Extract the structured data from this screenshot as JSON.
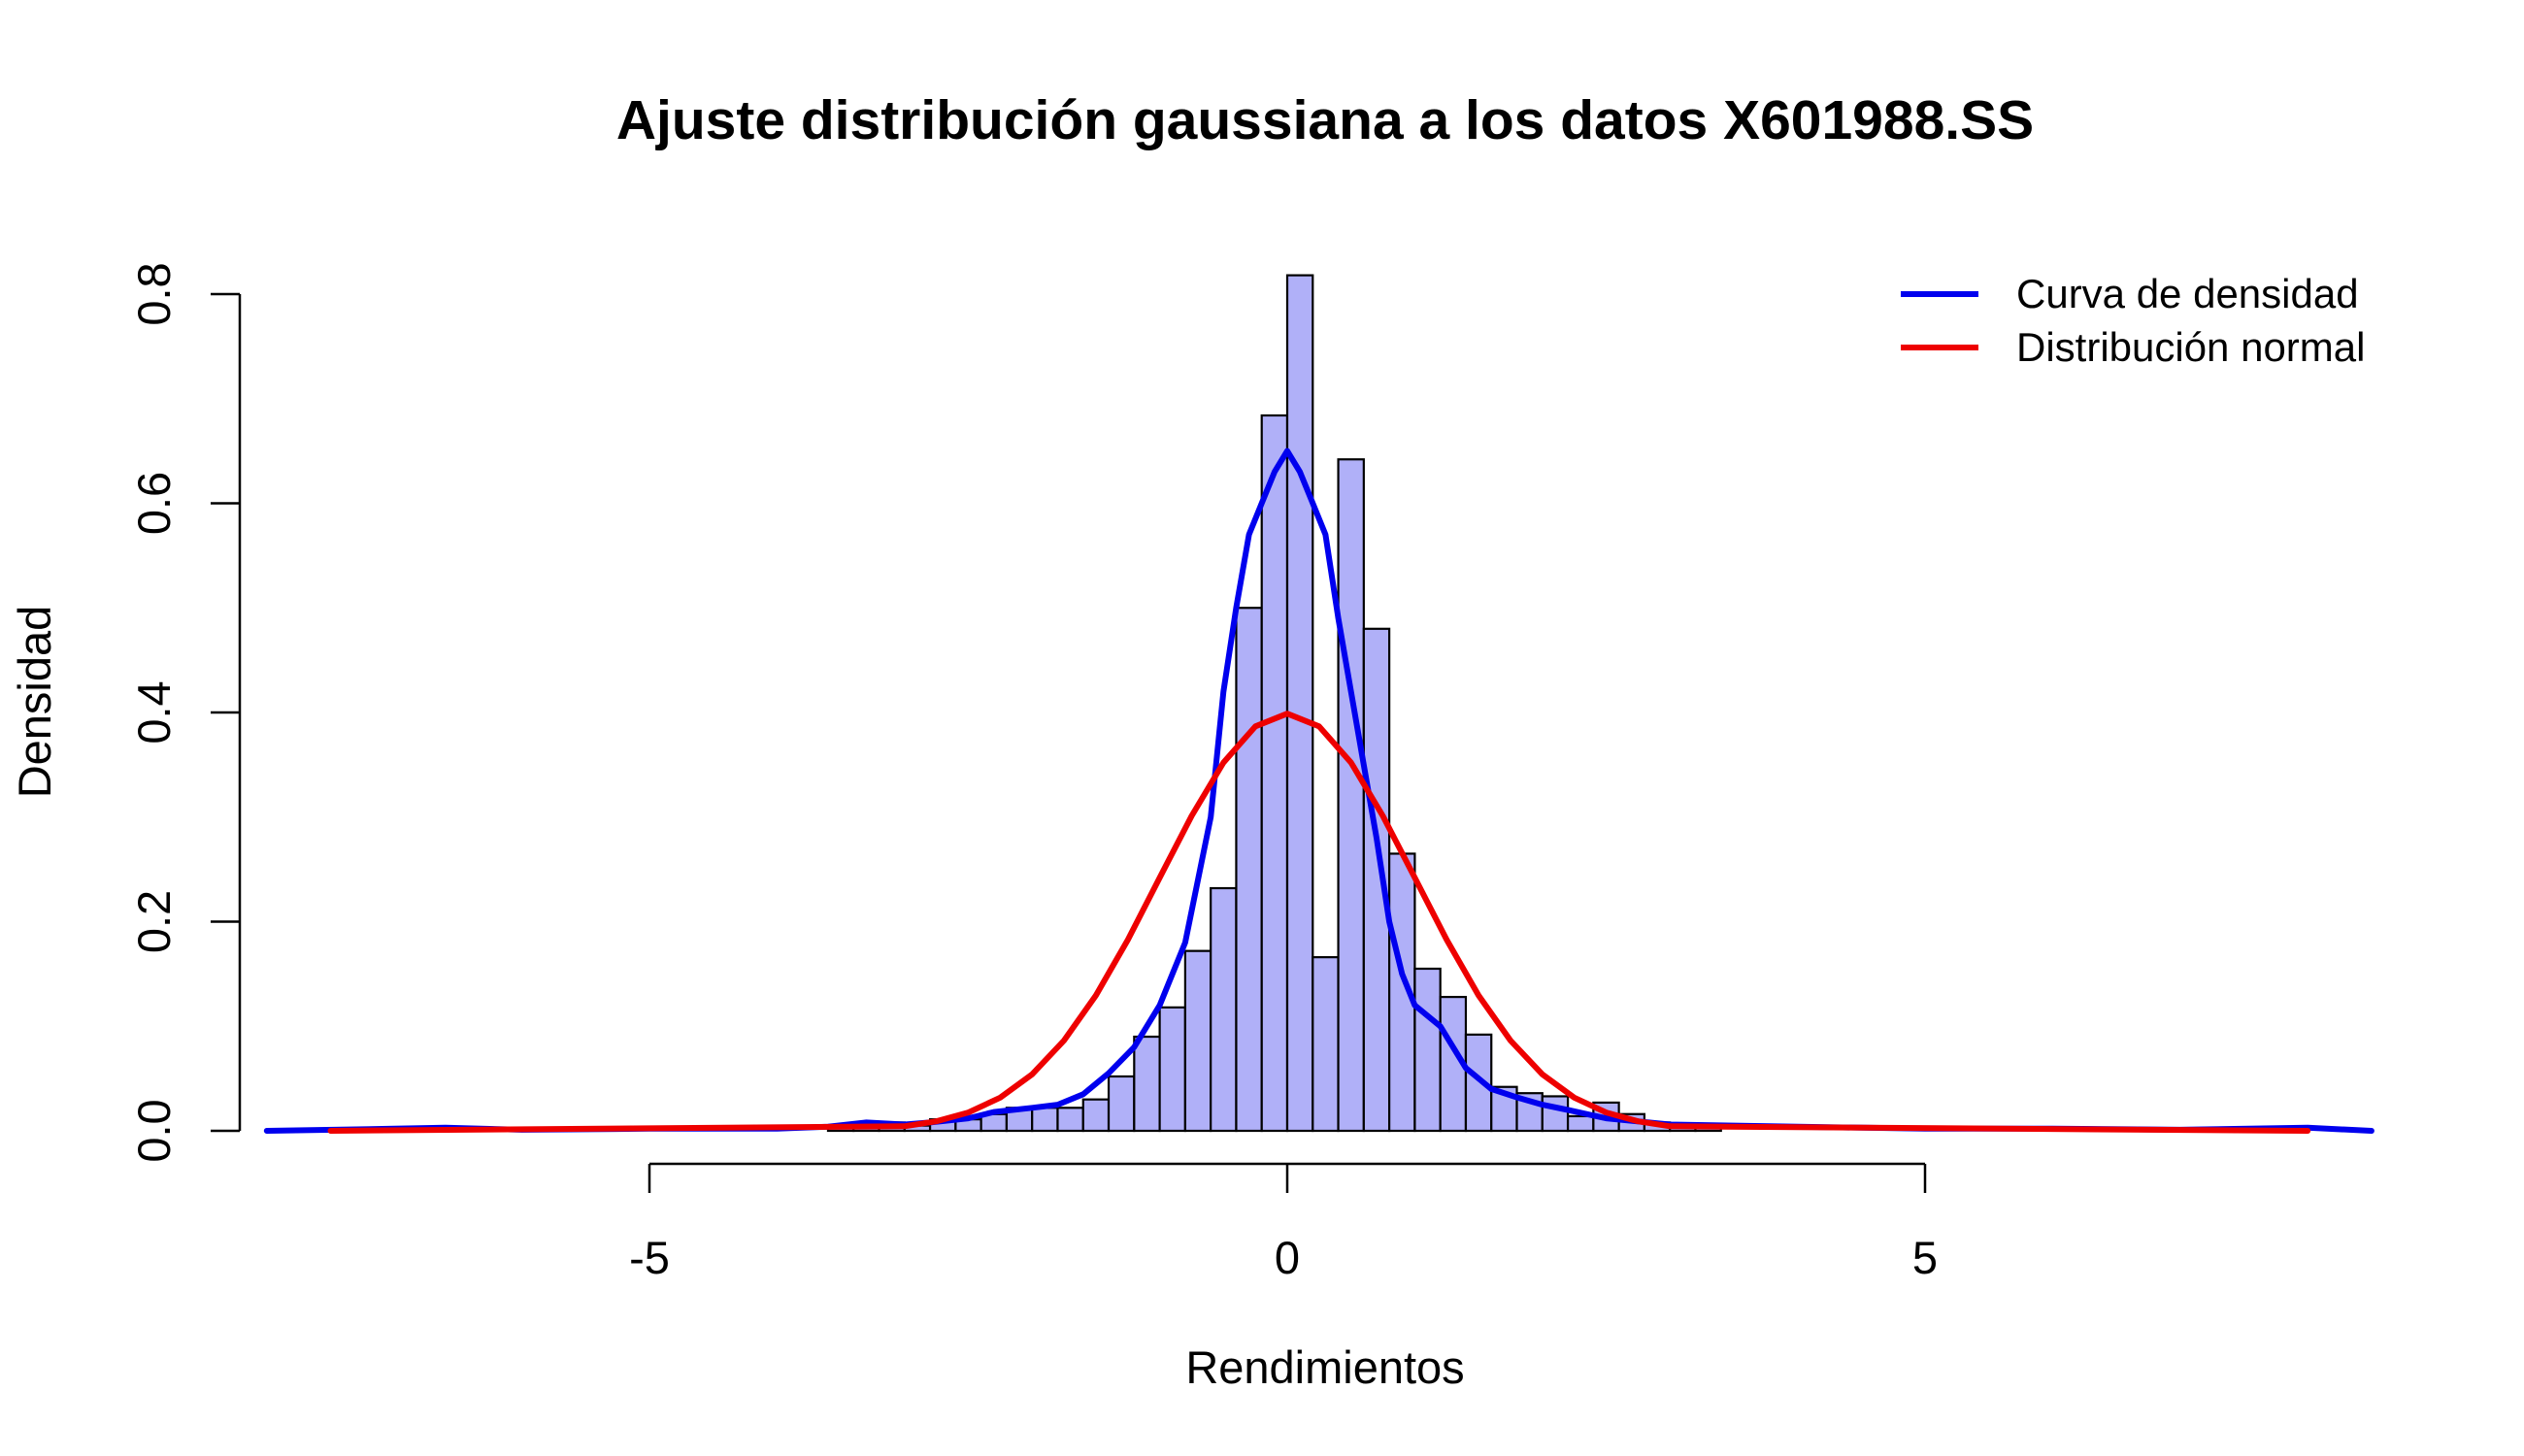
{
  "chart_data": {
    "type": "bar",
    "title": "Ajuste distribución gaussiana a los datos X601988.SS",
    "xlabel": "Rendimientos",
    "ylabel": "Densidad",
    "xlim": [
      -8,
      8.5
    ],
    "ylim": [
      0,
      0.82
    ],
    "x_ticks": [
      -5,
      0,
      5
    ],
    "x_tick_labels": [
      "-5",
      "0",
      "5"
    ],
    "y_ticks": [
      0.0,
      0.2,
      0.4,
      0.6,
      0.8
    ],
    "y_tick_labels": [
      "0.0",
      "0.2",
      "0.4",
      "0.6",
      "0.8"
    ],
    "grid": false,
    "legend_position": "top-right",
    "histogram": {
      "bin_width": 0.2,
      "fill_color": "#b0b0f8",
      "edge_color": "#000000",
      "bins": [
        {
          "x0": -3.6,
          "density": 0.003
        },
        {
          "x0": -3.4,
          "density": 0.008
        },
        {
          "x0": -3.2,
          "density": 0.008
        },
        {
          "x0": -3.0,
          "density": 0.005
        },
        {
          "x0": -2.8,
          "density": 0.011
        },
        {
          "x0": -2.6,
          "density": 0.011
        },
        {
          "x0": -2.4,
          "density": 0.016
        },
        {
          "x0": -2.2,
          "density": 0.022
        },
        {
          "x0": -2.0,
          "density": 0.022
        },
        {
          "x0": -1.8,
          "density": 0.022
        },
        {
          "x0": -1.6,
          "density": 0.03
        },
        {
          "x0": -1.4,
          "density": 0.052
        },
        {
          "x0": -1.2,
          "density": 0.09
        },
        {
          "x0": -1.0,
          "density": 0.118
        },
        {
          "x0": -0.8,
          "density": 0.172
        },
        {
          "x0": -0.6,
          "density": 0.232
        },
        {
          "x0": -0.4,
          "density": 0.5
        },
        {
          "x0": -0.2,
          "density": 0.684
        },
        {
          "x0": 0.0,
          "density": 0.818
        },
        {
          "x0": 0.2,
          "density": 0.166
        },
        {
          "x0": 0.4,
          "density": 0.642
        },
        {
          "x0": 0.6,
          "density": 0.48
        },
        {
          "x0": 0.8,
          "density": 0.265
        },
        {
          "x0": 1.0,
          "density": 0.155
        },
        {
          "x0": 1.2,
          "density": 0.128
        },
        {
          "x0": 1.4,
          "density": 0.092
        },
        {
          "x0": 1.6,
          "density": 0.042
        },
        {
          "x0": 1.8,
          "density": 0.036
        },
        {
          "x0": 2.0,
          "density": 0.033
        },
        {
          "x0": 2.2,
          "density": 0.014
        },
        {
          "x0": 2.4,
          "density": 0.027
        },
        {
          "x0": 2.6,
          "density": 0.016
        },
        {
          "x0": 2.8,
          "density": 0.008
        },
        {
          "x0": 3.0,
          "density": 0.005
        },
        {
          "x0": 3.2,
          "density": 0.003
        }
      ]
    },
    "series": [
      {
        "name": "Curva de densidad",
        "color": "#0000ee",
        "x": [
          -8.0,
          -7.0,
          -6.6,
          -6.0,
          -5.0,
          -4.0,
          -3.6,
          -3.3,
          -3.0,
          -2.8,
          -2.5,
          -2.3,
          -2.0,
          -1.8,
          -1.6,
          -1.4,
          -1.2,
          -1.0,
          -0.8,
          -0.6,
          -0.5,
          -0.4,
          -0.3,
          -0.2,
          -0.1,
          0.0,
          0.1,
          0.2,
          0.3,
          0.4,
          0.5,
          0.6,
          0.7,
          0.8,
          0.9,
          1.0,
          1.2,
          1.4,
          1.6,
          1.8,
          2.0,
          2.2,
          2.5,
          3.0,
          3.5,
          4.0,
          5.0,
          6.0,
          7.0,
          8.0,
          8.5
        ],
        "y": [
          0.0,
          0.002,
          0.003,
          0.001,
          0.002,
          0.002,
          0.004,
          0.008,
          0.006,
          0.008,
          0.012,
          0.018,
          0.022,
          0.025,
          0.035,
          0.055,
          0.08,
          0.12,
          0.18,
          0.3,
          0.42,
          0.5,
          0.57,
          0.6,
          0.63,
          0.65,
          0.63,
          0.6,
          0.57,
          0.49,
          0.42,
          0.35,
          0.28,
          0.2,
          0.15,
          0.12,
          0.1,
          0.06,
          0.04,
          0.032,
          0.025,
          0.02,
          0.012,
          0.006,
          0.005,
          0.004,
          0.002,
          0.002,
          0.001,
          0.003,
          0.0
        ]
      },
      {
        "name": "Distribución normal",
        "color": "#ee0000",
        "x": [
          -7.5,
          -3.0,
          -2.75,
          -2.5,
          -2.25,
          -2.0,
          -1.75,
          -1.5,
          -1.25,
          -1.0,
          -0.75,
          -0.5,
          -0.25,
          0.0,
          0.25,
          0.5,
          0.75,
          1.0,
          1.25,
          1.5,
          1.75,
          2.0,
          2.25,
          2.5,
          2.75,
          3.0,
          8.0
        ],
        "y": [
          0.0,
          0.0044,
          0.0091,
          0.0175,
          0.0317,
          0.054,
          0.0863,
          0.1295,
          0.1826,
          0.242,
          0.3011,
          0.3521,
          0.3867,
          0.3989,
          0.3867,
          0.3521,
          0.3011,
          0.242,
          0.1826,
          0.1295,
          0.0863,
          0.054,
          0.0317,
          0.0175,
          0.0091,
          0.0044,
          0.0
        ]
      }
    ]
  }
}
